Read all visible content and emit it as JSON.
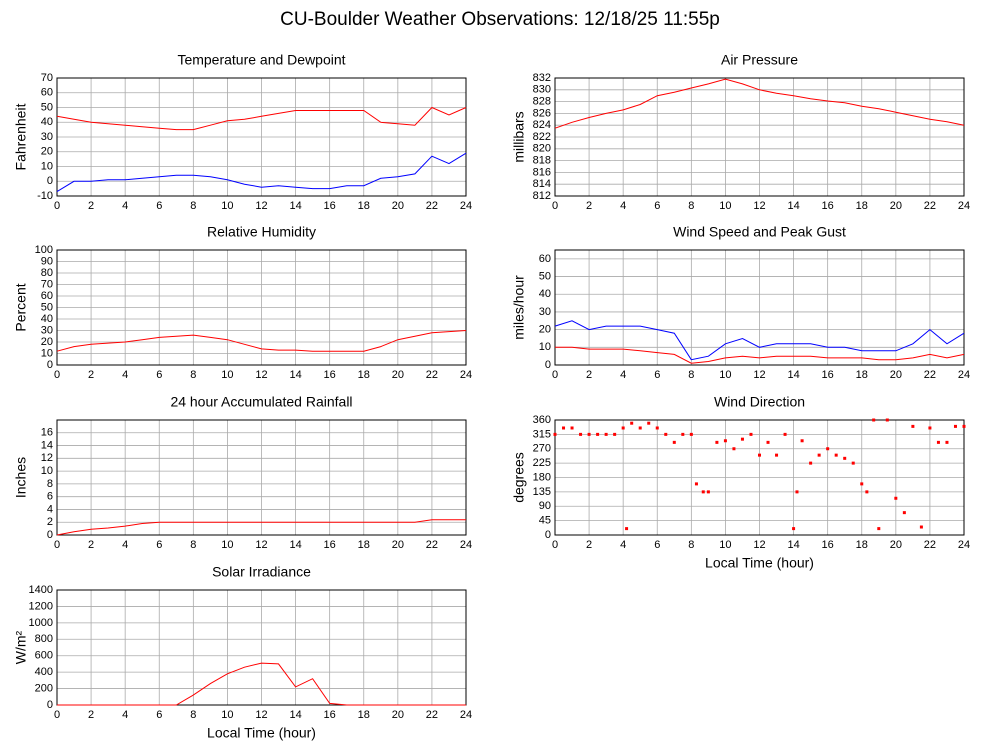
{
  "title": "CU-Boulder Weather Observations: 12/18/25 11:55p",
  "chart_data": [
    {
      "type": "line",
      "title": "Temperature and Dewpoint",
      "y_label": "Fahrenheit",
      "x": [
        0,
        1,
        2,
        3,
        4,
        5,
        6,
        7,
        8,
        9,
        10,
        11,
        12,
        13,
        14,
        15,
        16,
        17,
        18,
        19,
        20,
        21,
        22,
        23,
        24
      ],
      "series": [
        {
          "name": "Temperature",
          "color": "#ff0000",
          "values": [
            44,
            42,
            40,
            39,
            38,
            37,
            36,
            35,
            35,
            38,
            41,
            42,
            44,
            46,
            48,
            48,
            48,
            48,
            48,
            40,
            39,
            38,
            50,
            45,
            50
          ]
        },
        {
          "name": "Dewpoint",
          "color": "#0000ff",
          "values": [
            -7,
            0,
            0,
            1,
            1,
            2,
            3,
            4,
            4,
            3,
            1,
            -2,
            -4,
            -3,
            -4,
            -5,
            -5,
            -3,
            -3,
            2,
            3,
            5,
            17,
            12,
            19
          ]
        }
      ],
      "xlim": [
        0,
        24
      ],
      "xticks": [
        0,
        2,
        4,
        6,
        8,
        10,
        12,
        14,
        16,
        18,
        20,
        22,
        24
      ],
      "ylim": [
        -10,
        70
      ],
      "yticks": [
        -10,
        0,
        10,
        20,
        30,
        40,
        50,
        60,
        70
      ],
      "grid": true
    },
    {
      "type": "line",
      "title": "Air Pressure",
      "y_label": "millibars",
      "x": [
        0,
        1,
        2,
        3,
        4,
        5,
        6,
        7,
        8,
        9,
        10,
        11,
        12,
        13,
        14,
        15,
        16,
        17,
        18,
        19,
        20,
        21,
        22,
        23,
        24
      ],
      "series": [
        {
          "name": "Pressure",
          "color": "#ff0000",
          "values": [
            823.5,
            824.5,
            825.3,
            826,
            826.6,
            827.5,
            829,
            829.6,
            830.3,
            831,
            831.8,
            831,
            830,
            829.4,
            829,
            828.5,
            828.1,
            827.8,
            827.2,
            826.8,
            826.2,
            825.6,
            825,
            824.6,
            824
          ]
        }
      ],
      "xlim": [
        0,
        24
      ],
      "xticks": [
        0,
        2,
        4,
        6,
        8,
        10,
        12,
        14,
        16,
        18,
        20,
        22,
        24
      ],
      "ylim": [
        812,
        832
      ],
      "yticks": [
        812,
        814,
        816,
        818,
        820,
        822,
        824,
        826,
        828,
        830,
        832
      ],
      "grid": true
    },
    {
      "type": "line",
      "title": "Relative Humidity",
      "y_label": "Percent",
      "x": [
        0,
        1,
        2,
        3,
        4,
        5,
        6,
        7,
        8,
        9,
        10,
        11,
        12,
        13,
        14,
        15,
        16,
        17,
        18,
        19,
        20,
        21,
        22,
        23,
        24
      ],
      "series": [
        {
          "name": "Humidity",
          "color": "#ff0000",
          "values": [
            12,
            16,
            18,
            19,
            20,
            22,
            24,
            25,
            26,
            24,
            22,
            18,
            14,
            13,
            13,
            12,
            12,
            12,
            12,
            16,
            22,
            25,
            28,
            29,
            30
          ]
        }
      ],
      "xlim": [
        0,
        24
      ],
      "xticks": [
        0,
        2,
        4,
        6,
        8,
        10,
        12,
        14,
        16,
        18,
        20,
        22,
        24
      ],
      "ylim": [
        0,
        100
      ],
      "yticks": [
        0,
        10,
        20,
        30,
        40,
        50,
        60,
        70,
        80,
        90,
        100
      ],
      "grid": true
    },
    {
      "type": "line",
      "title": "Wind Speed and Peak Gust",
      "y_label": "miles/hour",
      "x": [
        0,
        1,
        2,
        3,
        4,
        5,
        6,
        7,
        8,
        9,
        10,
        11,
        12,
        13,
        14,
        15,
        16,
        17,
        18,
        19,
        20,
        21,
        22,
        23,
        24
      ],
      "series": [
        {
          "name": "Peak Gust",
          "color": "#0000ff",
          "values": [
            22,
            25,
            20,
            22,
            22,
            22,
            20,
            18,
            3,
            5,
            12,
            15,
            10,
            12,
            12,
            12,
            10,
            10,
            8,
            8,
            8,
            12,
            20,
            12,
            18
          ]
        },
        {
          "name": "Wind Speed",
          "color": "#ff0000",
          "values": [
            10,
            10,
            9,
            9,
            9,
            8,
            7,
            6,
            1,
            2,
            4,
            5,
            4,
            5,
            5,
            5,
            4,
            4,
            4,
            3,
            3,
            4,
            6,
            4,
            6
          ]
        }
      ],
      "xlim": [
        0,
        24
      ],
      "xticks": [
        0,
        2,
        4,
        6,
        8,
        10,
        12,
        14,
        16,
        18,
        20,
        22,
        24
      ],
      "ylim": [
        0,
        65
      ],
      "yticks": [
        0,
        10,
        20,
        30,
        40,
        50,
        60
      ],
      "grid": true
    },
    {
      "type": "line",
      "title": "24 hour Accumulated Rainfall",
      "y_label": "Inches",
      "x": [
        0,
        1,
        2,
        3,
        4,
        5,
        6,
        7,
        8,
        9,
        10,
        11,
        12,
        13,
        14,
        15,
        16,
        17,
        18,
        19,
        20,
        21,
        22,
        23,
        24
      ],
      "series": [
        {
          "name": "Rainfall",
          "color": "#ff0000",
          "values": [
            0,
            0.5,
            0.9,
            1.1,
            1.4,
            1.8,
            2,
            2,
            2,
            2,
            2,
            2,
            2,
            2,
            2,
            2,
            2,
            2,
            2,
            2,
            2,
            2,
            2.4,
            2.4,
            2.4
          ]
        }
      ],
      "xlim": [
        0,
        24
      ],
      "xticks": [
        0,
        2,
        4,
        6,
        8,
        10,
        12,
        14,
        16,
        18,
        20,
        22,
        24
      ],
      "ylim": [
        0,
        18
      ],
      "yticks": [
        0,
        2,
        4,
        6,
        8,
        10,
        12,
        14,
        16
      ],
      "grid": true
    },
    {
      "type": "scatter",
      "title": "Wind Direction",
      "y_label": "degrees",
      "x_label": "Local Time (hour)",
      "x": [
        0,
        0.5,
        1,
        1.5,
        2,
        2.5,
        3,
        3.5,
        4,
        4.2,
        4.5,
        5,
        5.5,
        6,
        6.5,
        7,
        7.5,
        8,
        8.3,
        8.7,
        9,
        9.5,
        10,
        10.5,
        11,
        11.5,
        12,
        12.5,
        13,
        13.5,
        14,
        14.2,
        14.5,
        15,
        15.5,
        16,
        16.5,
        17,
        17.5,
        18,
        18.3,
        18.7,
        19,
        19.5,
        20,
        20.5,
        21,
        21.5,
        22,
        22.5,
        23,
        23.5,
        24
      ],
      "series": [
        {
          "name": "Direction",
          "color": "#ff0000",
          "values": [
            315,
            335,
            335,
            315,
            315,
            315,
            315,
            315,
            335,
            20,
            350,
            335,
            350,
            335,
            315,
            290,
            315,
            315,
            160,
            135,
            135,
            290,
            295,
            270,
            300,
            315,
            250,
            290,
            250,
            315,
            20,
            135,
            295,
            225,
            250,
            270,
            250,
            240,
            225,
            160,
            135,
            360,
            20,
            360,
            115,
            70,
            340,
            25,
            335,
            290,
            290,
            340,
            340
          ]
        }
      ],
      "xlim": [
        0,
        24
      ],
      "xticks": [
        0,
        2,
        4,
        6,
        8,
        10,
        12,
        14,
        16,
        18,
        20,
        22,
        24
      ],
      "ylim": [
        0,
        360
      ],
      "yticks": [
        0,
        45,
        90,
        135,
        180,
        225,
        270,
        315,
        360
      ],
      "grid": true
    },
    {
      "type": "line",
      "title": "Solar Irradiance",
      "y_label": "W/m²",
      "x_label": "Local Time (hour)",
      "x": [
        0,
        1,
        2,
        3,
        4,
        5,
        6,
        7,
        8,
        9,
        10,
        11,
        12,
        13,
        14,
        15,
        16,
        17,
        18,
        19,
        20,
        21,
        22,
        23,
        24
      ],
      "series": [
        {
          "name": "Irradiance",
          "color": "#ff0000",
          "values": [
            0,
            0,
            0,
            0,
            0,
            0,
            0,
            0,
            120,
            260,
            380,
            460,
            510,
            500,
            220,
            320,
            20,
            0,
            0,
            0,
            0,
            0,
            0,
            0,
            0
          ]
        }
      ],
      "xlim": [
        0,
        24
      ],
      "xticks": [
        0,
        2,
        4,
        6,
        8,
        10,
        12,
        14,
        16,
        18,
        20,
        22,
        24
      ],
      "ylim": [
        0,
        1400
      ],
      "yticks": [
        0,
        200,
        400,
        600,
        800,
        1000,
        1200,
        1400
      ],
      "grid": true
    }
  ]
}
